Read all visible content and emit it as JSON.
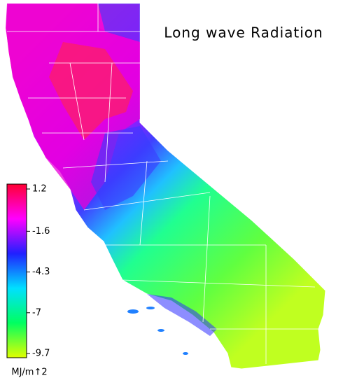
{
  "title": "Long wave Radiation",
  "colorbar": {
    "unit": "MJ/m↑2",
    "lim": [
      1.2,
      -9.7
    ],
    "ticks": [
      1.2,
      -1.6,
      -4.3,
      -7.0,
      -9.7
    ],
    "colors": [
      "#ff0033",
      "#ff00ff",
      "#2020ff",
      "#00e0ff",
      "#00ff60",
      "#e0ff00"
    ]
  }
}
